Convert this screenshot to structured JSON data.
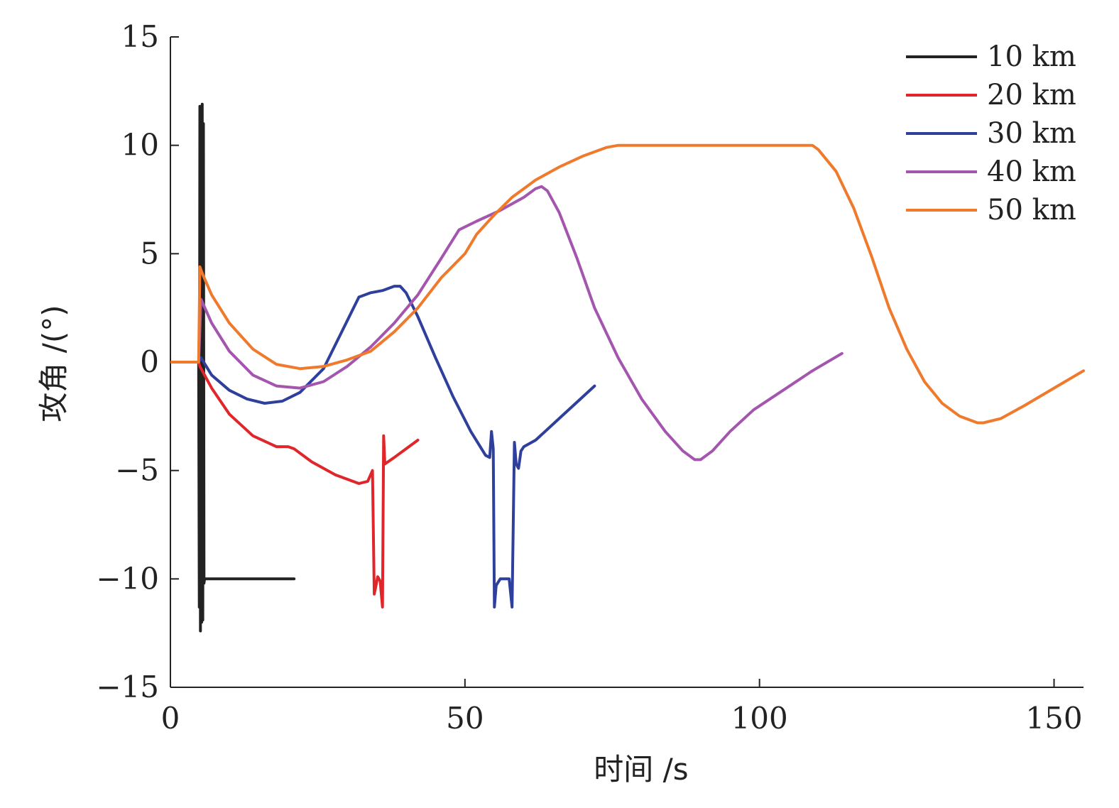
{
  "chart_data": {
    "type": "line",
    "xlabel": "时间 /s",
    "ylabel": "攻角 /(°)",
    "xlim": [
      0,
      155
    ],
    "ylim": [
      -15,
      15
    ],
    "xticks": [
      0,
      50,
      100,
      150
    ],
    "yticks": [
      -15,
      -10,
      -5,
      0,
      5,
      10,
      15
    ],
    "xtick_labels": [
      "0",
      "50",
      "100",
      "150"
    ],
    "ytick_labels": [
      "−15",
      "−10",
      "−5",
      "0",
      "5",
      "10",
      "15"
    ],
    "grid": false,
    "legend_position": "top-right",
    "series": [
      {
        "name": "10 km",
        "color": "#222222",
        "points": [
          [
            0,
            0
          ],
          [
            4.8,
            0
          ],
          [
            4.9,
            -11.3
          ],
          [
            5.0,
            11.8
          ],
          [
            5.1,
            -12.4
          ],
          [
            5.2,
            11.7
          ],
          [
            5.3,
            -12.0
          ],
          [
            5.4,
            11.9
          ],
          [
            5.5,
            -11.9
          ],
          [
            5.6,
            11.0
          ],
          [
            5.7,
            -10.2
          ],
          [
            5.8,
            -10.0
          ],
          [
            10,
            -10.0
          ],
          [
            21,
            -10.0
          ]
        ]
      },
      {
        "name": "20 km",
        "color": "#e0262a",
        "points": [
          [
            0,
            0
          ],
          [
            4.8,
            0
          ],
          [
            5.0,
            -0.2
          ],
          [
            7,
            -1.2
          ],
          [
            10,
            -2.4
          ],
          [
            14,
            -3.4
          ],
          [
            18,
            -3.9
          ],
          [
            20,
            -3.9
          ],
          [
            21,
            -4.0
          ],
          [
            24,
            -4.6
          ],
          [
            28,
            -5.2
          ],
          [
            32,
            -5.6
          ],
          [
            33.5,
            -5.5
          ],
          [
            34.3,
            -5.0
          ],
          [
            34.6,
            -10.7
          ],
          [
            35.2,
            -9.9
          ],
          [
            35.6,
            -10.1
          ],
          [
            36.0,
            -11.3
          ],
          [
            36.2,
            -3.4
          ],
          [
            36.4,
            -4.7
          ],
          [
            38,
            -4.4
          ],
          [
            42,
            -3.6
          ]
        ]
      },
      {
        "name": "30 km",
        "color": "#2e3f9c",
        "points": [
          [
            0,
            0
          ],
          [
            4.8,
            0
          ],
          [
            5.2,
            0.2
          ],
          [
            7,
            -0.6
          ],
          [
            10,
            -1.3
          ],
          [
            13,
            -1.7
          ],
          [
            16,
            -1.9
          ],
          [
            19,
            -1.8
          ],
          [
            22,
            -1.4
          ],
          [
            26,
            -0.3
          ],
          [
            30,
            1.9
          ],
          [
            32,
            3.0
          ],
          [
            34,
            3.2
          ],
          [
            36,
            3.3
          ],
          [
            38,
            3.5
          ],
          [
            39,
            3.5
          ],
          [
            40,
            3.2
          ],
          [
            42,
            2.1
          ],
          [
            45,
            0.2
          ],
          [
            48,
            -1.6
          ],
          [
            51,
            -3.2
          ],
          [
            53.5,
            -4.3
          ],
          [
            54.2,
            -4.4
          ],
          [
            54.5,
            -3.2
          ],
          [
            54.8,
            -4.0
          ],
          [
            55.0,
            -11.3
          ],
          [
            55.3,
            -10.3
          ],
          [
            56,
            -10.0
          ],
          [
            57.5,
            -10.0
          ],
          [
            58.0,
            -11.3
          ],
          [
            58.4,
            -3.7
          ],
          [
            58.7,
            -4.7
          ],
          [
            59.1,
            -4.9
          ],
          [
            59.5,
            -4.1
          ],
          [
            60,
            -3.9
          ],
          [
            62,
            -3.6
          ],
          [
            66,
            -2.6
          ],
          [
            72,
            -1.1
          ]
        ]
      },
      {
        "name": "40 km",
        "color": "#a455ae",
        "points": [
          [
            0,
            0
          ],
          [
            4.8,
            0
          ],
          [
            5.2,
            2.9
          ],
          [
            7,
            1.8
          ],
          [
            10,
            0.5
          ],
          [
            14,
            -0.6
          ],
          [
            18,
            -1.1
          ],
          [
            22,
            -1.2
          ],
          [
            26,
            -0.9
          ],
          [
            30,
            -0.2
          ],
          [
            34,
            0.7
          ],
          [
            38,
            1.8
          ],
          [
            42,
            3.1
          ],
          [
            46,
            4.8
          ],
          [
            49,
            6.1
          ],
          [
            52,
            6.5
          ],
          [
            56,
            7.0
          ],
          [
            60,
            7.6
          ],
          [
            62,
            8.0
          ],
          [
            63,
            8.1
          ],
          [
            64,
            7.9
          ],
          [
            66,
            6.9
          ],
          [
            69,
            4.8
          ],
          [
            72,
            2.5
          ],
          [
            76,
            0.2
          ],
          [
            80,
            -1.7
          ],
          [
            84,
            -3.2
          ],
          [
            87,
            -4.1
          ],
          [
            89,
            -4.5
          ],
          [
            90,
            -4.5
          ],
          [
            92,
            -4.1
          ],
          [
            95,
            -3.2
          ],
          [
            99,
            -2.2
          ],
          [
            104,
            -1.3
          ],
          [
            109,
            -0.4
          ],
          [
            114,
            0.4
          ]
        ]
      },
      {
        "name": "50 km",
        "color": "#f07a2c",
        "points": [
          [
            0,
            0
          ],
          [
            4.8,
            0
          ],
          [
            5.0,
            4.4
          ],
          [
            5.4,
            4.1
          ],
          [
            7,
            3.1
          ],
          [
            10,
            1.8
          ],
          [
            14,
            0.6
          ],
          [
            18,
            -0.1
          ],
          [
            22,
            -0.3
          ],
          [
            26,
            -0.2
          ],
          [
            30,
            0.1
          ],
          [
            34,
            0.5
          ],
          [
            38,
            1.4
          ],
          [
            42,
            2.5
          ],
          [
            46,
            3.9
          ],
          [
            50,
            5.0
          ],
          [
            52,
            5.9
          ],
          [
            55,
            6.8
          ],
          [
            58,
            7.6
          ],
          [
            62,
            8.4
          ],
          [
            66,
            9.0
          ],
          [
            70,
            9.5
          ],
          [
            74,
            9.9
          ],
          [
            76,
            10.0
          ],
          [
            80,
            10.0
          ],
          [
            90,
            10.0
          ],
          [
            100,
            10.0
          ],
          [
            108,
            10.0
          ],
          [
            109,
            10.0
          ],
          [
            110,
            9.8
          ],
          [
            113,
            8.8
          ],
          [
            116,
            7.1
          ],
          [
            119,
            4.9
          ],
          [
            122,
            2.5
          ],
          [
            125,
            0.6
          ],
          [
            128,
            -0.9
          ],
          [
            131,
            -1.9
          ],
          [
            134,
            -2.5
          ],
          [
            137,
            -2.8
          ],
          [
            138,
            -2.8
          ],
          [
            141,
            -2.6
          ],
          [
            145,
            -2.0
          ],
          [
            150,
            -1.2
          ],
          [
            155,
            -0.4
          ]
        ]
      }
    ]
  }
}
